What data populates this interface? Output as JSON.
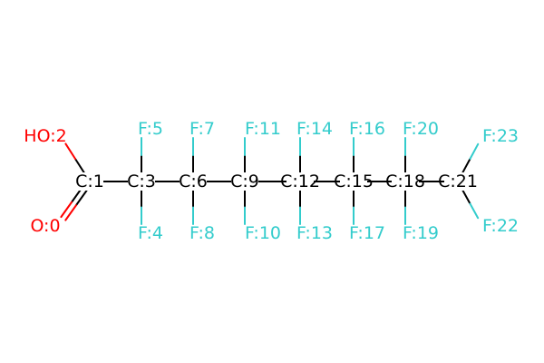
{
  "colors": {
    "background": "#ffffff",
    "carbon": "#000000",
    "oxygen": "#ff0000",
    "fluorine": "#33cccc"
  },
  "molecule": {
    "atoms": [
      {
        "id": "C1",
        "label": "C:1",
        "element": "C"
      },
      {
        "id": "O2",
        "label": "HO:2",
        "element": "O"
      },
      {
        "id": "O0",
        "label": "O:0",
        "element": "O"
      },
      {
        "id": "C3",
        "label": "C:3",
        "element": "C"
      },
      {
        "id": "F5",
        "label": "F:5",
        "element": "F"
      },
      {
        "id": "F4",
        "label": "F:4",
        "element": "F"
      },
      {
        "id": "C6",
        "label": "C:6",
        "element": "C"
      },
      {
        "id": "F7",
        "label": "F:7",
        "element": "F"
      },
      {
        "id": "F8",
        "label": "F:8",
        "element": "F"
      },
      {
        "id": "C9",
        "label": "C:9",
        "element": "C"
      },
      {
        "id": "F11",
        "label": "F:11",
        "element": "F"
      },
      {
        "id": "F10",
        "label": "F:10",
        "element": "F"
      },
      {
        "id": "C12",
        "label": "C:12",
        "element": "C"
      },
      {
        "id": "F14",
        "label": "F:14",
        "element": "F"
      },
      {
        "id": "F13",
        "label": "F:13",
        "element": "F"
      },
      {
        "id": "C15",
        "label": "C:15",
        "element": "C"
      },
      {
        "id": "F16",
        "label": "F:16",
        "element": "F"
      },
      {
        "id": "F17",
        "label": "F:17",
        "element": "F"
      },
      {
        "id": "C18",
        "label": "C:18",
        "element": "C"
      },
      {
        "id": "F20",
        "label": "F:20",
        "element": "F"
      },
      {
        "id": "F19",
        "label": "F:19",
        "element": "F"
      },
      {
        "id": "C21",
        "label": "C:21",
        "element": "C"
      },
      {
        "id": "F23",
        "label": "F:23",
        "element": "F"
      },
      {
        "id": "F22",
        "label": "F:22",
        "element": "F"
      }
    ],
    "bonds": [
      {
        "from": "C1",
        "to": "O2",
        "order": 1
      },
      {
        "from": "C1",
        "to": "O0",
        "order": 2
      },
      {
        "from": "C1",
        "to": "C3",
        "order": 1
      },
      {
        "from": "C3",
        "to": "F5",
        "order": 1
      },
      {
        "from": "C3",
        "to": "F4",
        "order": 1
      },
      {
        "from": "C3",
        "to": "C6",
        "order": 1
      },
      {
        "from": "C6",
        "to": "F7",
        "order": 1
      },
      {
        "from": "C6",
        "to": "F8",
        "order": 1
      },
      {
        "from": "C6",
        "to": "C9",
        "order": 1
      },
      {
        "from": "C9",
        "to": "F11",
        "order": 1
      },
      {
        "from": "C9",
        "to": "F10",
        "order": 1
      },
      {
        "from": "C9",
        "to": "C12",
        "order": 1
      },
      {
        "from": "C12",
        "to": "F14",
        "order": 1
      },
      {
        "from": "C12",
        "to": "F13",
        "order": 1
      },
      {
        "from": "C12",
        "to": "C15",
        "order": 1
      },
      {
        "from": "C15",
        "to": "F16",
        "order": 1
      },
      {
        "from": "C15",
        "to": "F17",
        "order": 1
      },
      {
        "from": "C15",
        "to": "C18",
        "order": 1
      },
      {
        "from": "C18",
        "to": "F20",
        "order": 1
      },
      {
        "from": "C18",
        "to": "F19",
        "order": 1
      },
      {
        "from": "C18",
        "to": "C21",
        "order": 1
      },
      {
        "from": "C21",
        "to": "F23",
        "order": 1
      },
      {
        "from": "C21",
        "to": "F22",
        "order": 1
      }
    ]
  }
}
